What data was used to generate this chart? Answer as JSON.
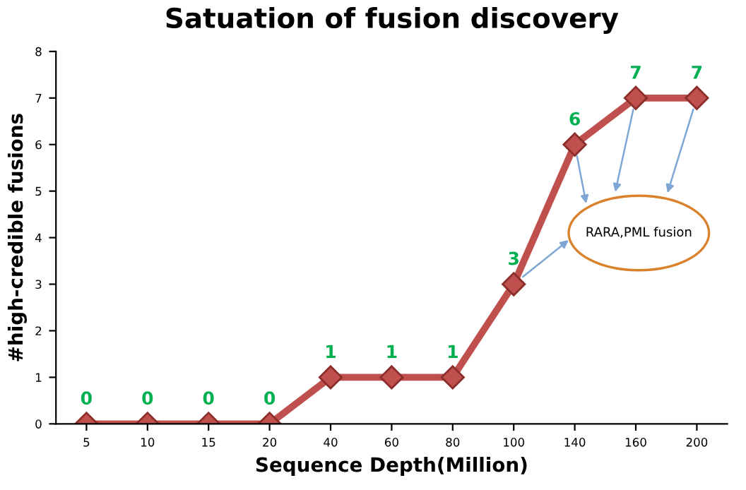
{
  "chart_data": {
    "type": "line",
    "title": "Satuation of fusion discovery",
    "xlabel": "Sequence Depth(Million)",
    "ylabel": "#high-credible fusions",
    "categories": [
      "5",
      "10",
      "15",
      "20",
      "40",
      "60",
      "80",
      "100",
      "140",
      "160",
      "200"
    ],
    "series": [
      {
        "color": "#c0504d",
        "values": [
          0,
          0,
          0,
          0,
          1,
          1,
          1,
          3,
          6,
          7,
          7
        ]
      }
    ],
    "ylim": [
      0,
      8
    ],
    "yticks": [
      0,
      1,
      2,
      3,
      4,
      5,
      6,
      7,
      8
    ],
    "grid": false,
    "legend": false,
    "marker": "diamond",
    "line_style": "solid",
    "data_labels": true,
    "annotations": [
      "RARA,PML fusion"
    ]
  }
}
